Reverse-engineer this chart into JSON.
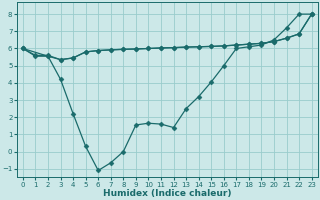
{
  "xlabel": "Humidex (Indice chaleur)",
  "xlim": [
    -0.5,
    23.5
  ],
  "ylim": [
    -1.5,
    8.7
  ],
  "xticks": [
    0,
    1,
    2,
    3,
    4,
    5,
    6,
    7,
    8,
    9,
    10,
    11,
    12,
    13,
    14,
    15,
    16,
    17,
    18,
    19,
    20,
    21,
    22,
    23
  ],
  "yticks": [
    -1,
    0,
    1,
    2,
    3,
    4,
    5,
    6,
    7,
    8
  ],
  "line1_x": [
    0,
    1,
    2,
    3,
    4,
    5,
    6,
    7,
    8,
    9,
    10,
    11,
    12,
    13,
    14,
    15,
    16,
    17,
    18,
    19,
    20,
    21,
    22,
    23
  ],
  "line1_y": [
    6.0,
    5.6,
    5.6,
    5.35,
    5.45,
    5.8,
    5.88,
    5.92,
    5.95,
    5.97,
    6.0,
    6.03,
    6.05,
    6.08,
    6.1,
    6.12,
    6.15,
    6.2,
    6.25,
    6.3,
    6.4,
    6.6,
    6.85,
    8.0
  ],
  "line2_x": [
    0,
    2,
    3,
    4,
    5,
    6,
    7,
    8,
    9,
    10,
    11,
    12,
    13,
    14,
    15,
    16,
    17,
    18,
    19,
    20,
    21,
    22,
    23
  ],
  "line2_y": [
    6.0,
    5.55,
    5.35,
    5.45,
    5.8,
    5.88,
    5.92,
    5.95,
    5.97,
    6.0,
    6.03,
    6.05,
    6.08,
    6.1,
    6.12,
    6.15,
    6.2,
    6.25,
    6.3,
    6.4,
    6.6,
    6.85,
    8.0
  ],
  "line3_x": [
    0,
    1,
    2,
    3,
    4,
    5,
    6,
    7,
    8,
    9,
    10,
    11,
    12,
    13,
    14,
    15,
    16,
    17,
    18,
    19,
    20,
    21,
    22,
    23
  ],
  "line3_y": [
    6.0,
    5.55,
    5.55,
    4.2,
    2.2,
    0.3,
    -1.1,
    -0.65,
    0.0,
    1.55,
    1.65,
    1.6,
    1.4,
    2.5,
    3.2,
    4.05,
    5.0,
    6.0,
    6.1,
    6.2,
    6.5,
    7.2,
    8.0,
    8.0
  ],
  "bg_color": "#cce8e8",
  "grid_color": "#99cccc",
  "line_color": "#1a6b6b",
  "markersize": 2.5,
  "linewidth": 0.9,
  "xlabel_fontsize": 6.5,
  "tick_fontsize": 5.0
}
